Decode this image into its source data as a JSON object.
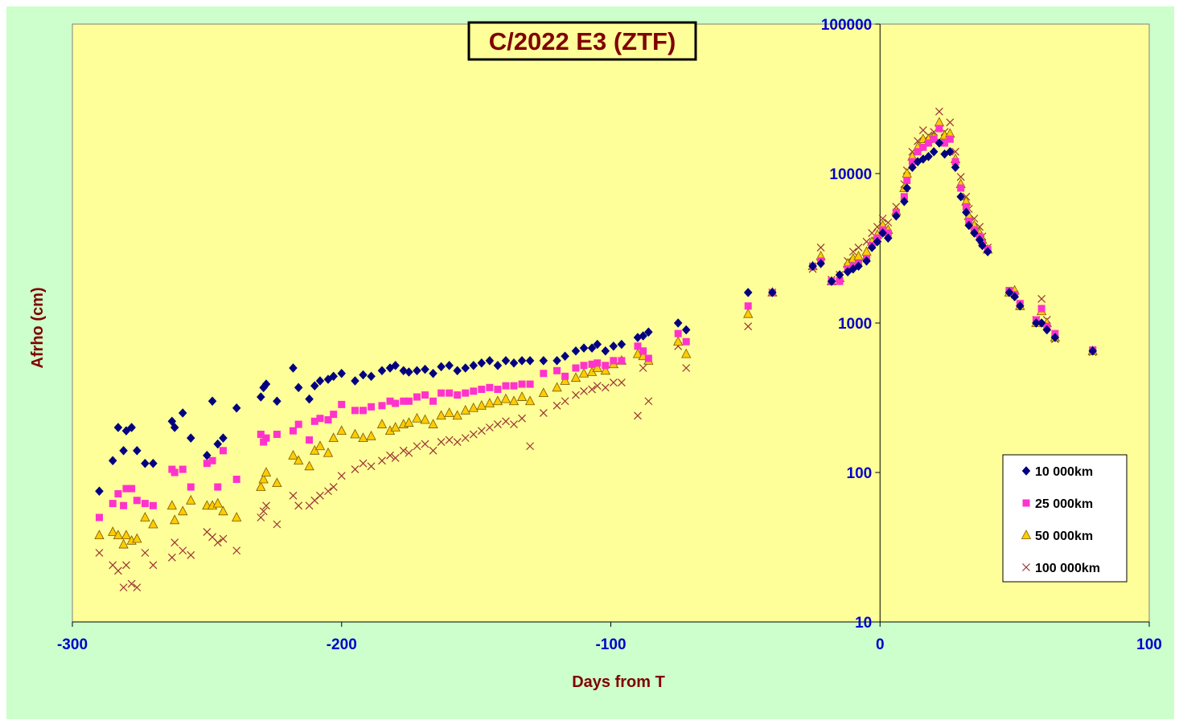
{
  "chart_data": {
    "type": "scatter",
    "title": "C/2022 E3 (ZTF)",
    "xlabel": "Days from T",
    "ylabel": "Afrho (cm)",
    "xlim": [
      -300,
      100
    ],
    "ylim": [
      10,
      100000
    ],
    "y_scale": "log",
    "x_ticks": [
      "-300",
      "-200",
      "-100",
      "0",
      "100"
    ],
    "y_ticks": [
      "10",
      "100",
      "1000",
      "10000",
      "100000"
    ],
    "legend_position": "bottom-right",
    "grid": false,
    "colors": {
      "outer_background": "#ccffcc",
      "plot_background": "#ffff99",
      "tick_labels": "#0000cc",
      "axis_titles": "#800000",
      "title_text": "#800000"
    },
    "series": [
      {
        "name": "10 000km",
        "marker": "diamond",
        "color": "#000080",
        "x": [
          -290,
          -285,
          -283,
          -281,
          -280,
          -278,
          -276,
          -273,
          -270,
          -263,
          -262,
          -259,
          -256,
          -250,
          -248,
          -246,
          -244,
          -239,
          -230,
          -229,
          -228,
          -224,
          -218,
          -216,
          -212,
          -210,
          -208,
          -205,
          -203,
          -200,
          -195,
          -192,
          -189,
          -185,
          -182,
          -180,
          -177,
          -175,
          -172,
          -169,
          -166,
          -163,
          -160,
          -157,
          -154,
          -151,
          -148,
          -145,
          -142,
          -139,
          -136,
          -133,
          -130,
          -125,
          -120,
          -117,
          -113,
          -110,
          -107,
          -105,
          -102,
          -99,
          -96,
          -90,
          -88,
          -86,
          -75,
          -72,
          -49,
          -40,
          -25,
          -22,
          -18,
          -15,
          -12,
          -10,
          -8,
          -5,
          -3,
          -1,
          1,
          3,
          6,
          9,
          10,
          12,
          14,
          16,
          18,
          20,
          22,
          24,
          26,
          28,
          30,
          32,
          33,
          35,
          37,
          38,
          40,
          48,
          50,
          52,
          58,
          60,
          62,
          65,
          79
        ],
        "values": [
          75,
          120,
          200,
          140,
          190,
          200,
          140,
          115,
          115,
          220,
          200,
          250,
          170,
          130,
          300,
          155,
          170,
          270,
          320,
          370,
          390,
          300,
          500,
          370,
          310,
          380,
          410,
          420,
          440,
          460,
          410,
          450,
          440,
          480,
          500,
          520,
          480,
          470,
          480,
          490,
          460,
          510,
          520,
          480,
          500,
          520,
          540,
          560,
          520,
          560,
          540,
          560,
          560,
          560,
          560,
          600,
          650,
          680,
          680,
          720,
          650,
          700,
          720,
          800,
          820,
          870,
          1000,
          900,
          1600,
          1600,
          2400,
          2500,
          1900,
          2100,
          2200,
          2300,
          2400,
          2600,
          3200,
          3500,
          4000,
          3700,
          5200,
          6500,
          8000,
          11000,
          12000,
          12500,
          13000,
          14000,
          16000,
          13500,
          14000,
          11000,
          7000,
          5500,
          4500,
          4000,
          3600,
          3300,
          3000,
          1600,
          1500,
          1300,
          1000,
          1000,
          900,
          800,
          650
        ]
      },
      {
        "name": "25 000km",
        "marker": "square",
        "color": "#ff33cc",
        "x": [
          -290,
          -285,
          -283,
          -281,
          -280,
          -278,
          -276,
          -273,
          -270,
          -263,
          -262,
          -259,
          -256,
          -250,
          -248,
          -246,
          -244,
          -239,
          -230,
          -229,
          -228,
          -224,
          -218,
          -216,
          -212,
          -210,
          -208,
          -205,
          -203,
          -200,
          -195,
          -192,
          -189,
          -185,
          -182,
          -180,
          -177,
          -175,
          -172,
          -169,
          -166,
          -163,
          -160,
          -157,
          -154,
          -151,
          -148,
          -145,
          -142,
          -139,
          -136,
          -133,
          -130,
          -125,
          -120,
          -117,
          -113,
          -110,
          -107,
          -105,
          -102,
          -99,
          -96,
          -90,
          -88,
          -86,
          -75,
          -72,
          -49,
          -40,
          -25,
          -22,
          -18,
          -15,
          -12,
          -10,
          -8,
          -5,
          -3,
          -1,
          1,
          3,
          6,
          9,
          10,
          12,
          14,
          16,
          18,
          20,
          22,
          24,
          26,
          28,
          30,
          32,
          33,
          35,
          37,
          38,
          40,
          48,
          50,
          52,
          58,
          60,
          62,
          65,
          79
        ],
        "values": [
          50,
          62,
          72,
          60,
          78,
          78,
          65,
          62,
          60,
          105,
          100,
          105,
          80,
          115,
          120,
          80,
          140,
          90,
          180,
          160,
          170,
          180,
          190,
          210,
          165,
          220,
          230,
          225,
          245,
          285,
          260,
          260,
          275,
          280,
          300,
          290,
          300,
          300,
          320,
          330,
          300,
          340,
          340,
          330,
          340,
          350,
          360,
          370,
          360,
          380,
          380,
          390,
          390,
          460,
          480,
          440,
          500,
          520,
          530,
          540,
          520,
          560,
          560,
          700,
          650,
          580,
          850,
          750,
          1300,
          1600,
          2400,
          2600,
          1900,
          1900,
          2300,
          2400,
          2500,
          2700,
          3300,
          3700,
          4200,
          4000,
          5500,
          7000,
          9000,
          12000,
          14000,
          15000,
          16000,
          17000,
          20000,
          16000,
          17000,
          12000,
          8000,
          6000,
          4800,
          4200,
          3800,
          3400,
          3100,
          1650,
          1550,
          1350,
          1050,
          1250,
          950,
          850,
          660
        ]
      },
      {
        "name": "50 000km",
        "marker": "triangle",
        "color": "#ffcc00",
        "x": [
          -290,
          -285,
          -283,
          -281,
          -280,
          -278,
          -276,
          -273,
          -270,
          -263,
          -262,
          -259,
          -256,
          -250,
          -248,
          -246,
          -244,
          -239,
          -230,
          -229,
          -228,
          -224,
          -218,
          -216,
          -212,
          -210,
          -208,
          -205,
          -203,
          -200,
          -195,
          -192,
          -189,
          -185,
          -182,
          -180,
          -177,
          -175,
          -172,
          -169,
          -166,
          -163,
          -160,
          -157,
          -154,
          -151,
          -148,
          -145,
          -142,
          -139,
          -136,
          -133,
          -130,
          -125,
          -120,
          -117,
          -113,
          -110,
          -107,
          -105,
          -102,
          -99,
          -96,
          -90,
          -88,
          -86,
          -75,
          -72,
          -49,
          -40,
          -25,
          -22,
          -18,
          -15,
          -12,
          -10,
          -8,
          -5,
          -3,
          -1,
          1,
          3,
          6,
          9,
          10,
          12,
          14,
          16,
          18,
          20,
          22,
          24,
          26,
          28,
          30,
          32,
          33,
          35,
          37,
          38,
          40,
          48,
          50,
          52,
          58,
          60,
          62,
          65,
          79
        ],
        "values": [
          38,
          40,
          38,
          33,
          38,
          35,
          36,
          50,
          45,
          60,
          48,
          55,
          65,
          60,
          60,
          62,
          55,
          50,
          80,
          90,
          100,
          85,
          130,
          120,
          110,
          140,
          150,
          135,
          170,
          190,
          180,
          170,
          175,
          210,
          190,
          200,
          210,
          215,
          230,
          225,
          210,
          240,
          250,
          240,
          260,
          270,
          280,
          290,
          300,
          310,
          300,
          320,
          300,
          340,
          370,
          410,
          430,
          460,
          470,
          500,
          480,
          530,
          560,
          620,
          600,
          560,
          750,
          620,
          1150,
          1600,
          2400,
          2800,
          1900,
          2000,
          2500,
          2700,
          2800,
          3000,
          3500,
          3900,
          4500,
          4200,
          5600,
          8000,
          10000,
          13000,
          15000,
          17000,
          17000,
          17500,
          22000,
          18000,
          18500,
          12500,
          8500,
          6500,
          5200,
          4500,
          4000,
          3600,
          3100,
          1600,
          1650,
          1300,
          1000,
          1200,
          1000,
          800,
          650
        ]
      },
      {
        "name": "100 000km",
        "marker": "x",
        "color": "#993333",
        "x": [
          -290,
          -285,
          -283,
          -281,
          -280,
          -278,
          -276,
          -273,
          -270,
          -263,
          -262,
          -259,
          -256,
          -250,
          -248,
          -246,
          -244,
          -239,
          -230,
          -229,
          -228,
          -224,
          -218,
          -216,
          -212,
          -210,
          -208,
          -205,
          -203,
          -200,
          -195,
          -192,
          -189,
          -185,
          -182,
          -180,
          -177,
          -175,
          -172,
          -169,
          -166,
          -163,
          -160,
          -157,
          -154,
          -151,
          -148,
          -145,
          -142,
          -139,
          -136,
          -133,
          -130,
          -125,
          -120,
          -117,
          -113,
          -110,
          -107,
          -105,
          -102,
          -99,
          -96,
          -90,
          -88,
          -86,
          -75,
          -72,
          -49,
          -40,
          -25,
          -22,
          -18,
          -15,
          -12,
          -10,
          -8,
          -5,
          -3,
          -1,
          1,
          3,
          6,
          9,
          10,
          12,
          14,
          16,
          18,
          20,
          22,
          24,
          26,
          28,
          30,
          32,
          33,
          35,
          37,
          38,
          40,
          48,
          50,
          52,
          58,
          60,
          62,
          65,
          79
        ],
        "values": [
          29,
          24,
          22,
          17,
          24,
          18,
          17,
          29,
          24,
          27,
          34,
          30,
          28,
          40,
          37,
          34,
          36,
          30,
          50,
          55,
          60,
          45,
          70,
          60,
          60,
          65,
          70,
          75,
          80,
          95,
          105,
          115,
          110,
          120,
          130,
          125,
          140,
          135,
          150,
          155,
          140,
          160,
          165,
          160,
          170,
          180,
          190,
          200,
          210,
          220,
          210,
          230,
          150,
          250,
          280,
          300,
          330,
          350,
          360,
          380,
          370,
          400,
          400,
          240,
          500,
          300,
          700,
          500,
          950,
          1600,
          2300,
          3200,
          1950,
          2100,
          2600,
          3000,
          3200,
          3500,
          4000,
          4400,
          5000,
          4700,
          6000,
          8500,
          10500,
          14000,
          16500,
          19500,
          18000,
          19000,
          26000,
          19000,
          22000,
          14000,
          9500,
          7000,
          5800,
          5000,
          4400,
          3800,
          3200,
          1600,
          1550,
          1300,
          1050,
          1450,
          1050,
          780,
          640
        ]
      }
    ]
  }
}
